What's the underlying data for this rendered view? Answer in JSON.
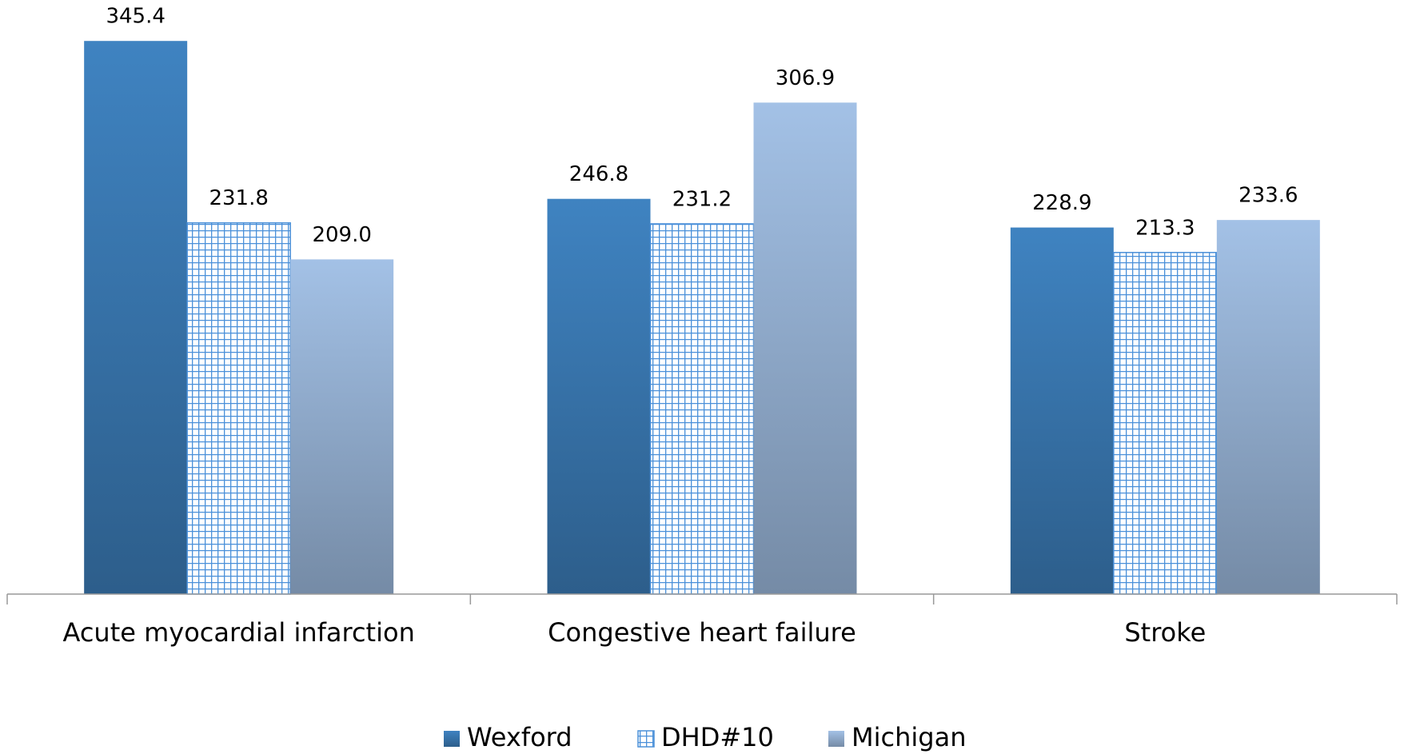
{
  "chart_data": {
    "type": "bar",
    "categories": [
      "Acute myocardial infarction",
      "Congestive heart failure",
      "Stroke"
    ],
    "series": [
      {
        "name": "Wexford",
        "color": "#3f83c1",
        "values": [
          345.4,
          246.8,
          228.9
        ],
        "value_labels": [
          "345.4",
          "246.8",
          "228.9"
        ]
      },
      {
        "name": "DHD#10",
        "color": "#4a90d9",
        "pattern": "grid",
        "values": [
          231.8,
          231.2,
          213.3
        ],
        "value_labels": [
          "231.8",
          "231.2",
          "213.3"
        ]
      },
      {
        "name": "Michigan",
        "color": "#a3c1e6",
        "values": [
          209.0,
          306.9,
          233.6
        ],
        "value_labels": [
          "209.0",
          "306.9",
          "233.6"
        ]
      }
    ],
    "ylim": [
      0,
      350
    ],
    "legend": "bottom"
  }
}
